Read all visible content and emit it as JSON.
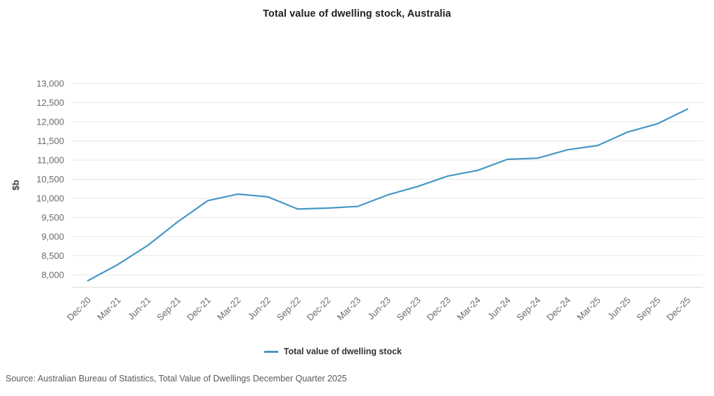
{
  "chart_data": {
    "type": "line",
    "title": "Total value of dwelling stock, Australia",
    "xlabel": "",
    "ylabel": "$b",
    "categories": [
      "Dec-20",
      "Mar-21",
      "Jun-21",
      "Sep-21",
      "Dec-21",
      "Mar-22",
      "Jun-22",
      "Sep-22",
      "Dec-22",
      "Mar-23",
      "Jun-23",
      "Sep-23",
      "Dec-23",
      "Mar-24",
      "Jun-24",
      "Sep-24",
      "Dec-24",
      "Mar-25",
      "Jun-25",
      "Sep-25",
      "Dec-25"
    ],
    "series": [
      {
        "name": "Total value of dwelling stock",
        "values": [
          7850,
          8270,
          8770,
          9390,
          9940,
          10110,
          10040,
          9720,
          9745,
          9790,
          10090,
          10310,
          10580,
          10730,
          11020,
          11050,
          11270,
          11380,
          11730,
          11950,
          12330
        ]
      }
    ],
    "y_ticks": [
      8000,
      8500,
      9000,
      9500,
      10000,
      10500,
      11000,
      11500,
      12000,
      12500,
      13000
    ],
    "ylim": [
      7675,
      13180
    ],
    "grid": "horizontal",
    "legend_position": "bottom",
    "line_color": "#4697C5"
  },
  "legend": {
    "label": "Total value of dwelling stock"
  },
  "source": {
    "text": "Source: Australian Bureau of Statistics, Total Value of Dwellings December Quarter 2025"
  },
  "colors": {
    "line": "#4697C5",
    "gridline": "#e7e7e7",
    "axis_line": "#d6d6d6",
    "tick_text": "#6a6a6a",
    "title_text": "#1f1f1f",
    "source_text": "#595959"
  }
}
